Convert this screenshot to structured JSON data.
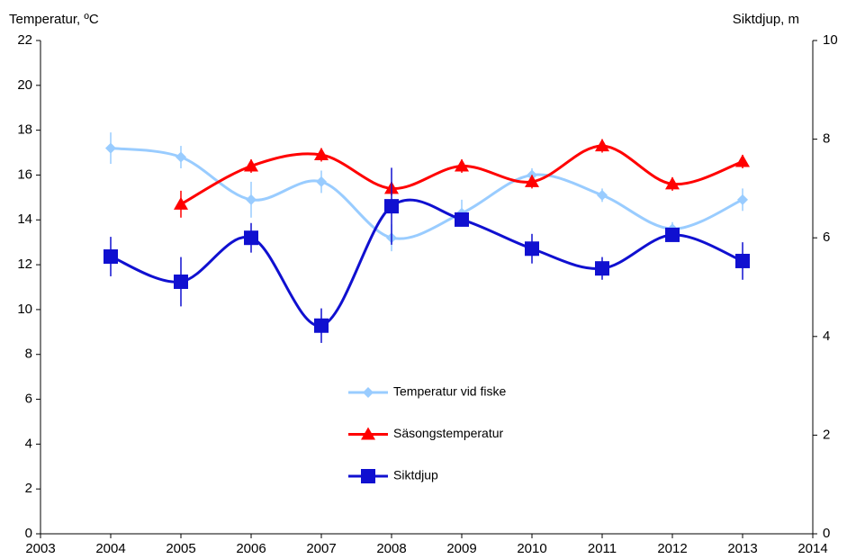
{
  "chart_data": {
    "type": "line",
    "y_label": "Temperatur, ºC",
    "y2_label": "Siktdjup, m",
    "x": [
      2004,
      2005,
      2006,
      2007,
      2008,
      2009,
      2010,
      2011,
      2012,
      2013
    ],
    "xlim": [
      2003,
      2014
    ],
    "xticks": [
      2003,
      2004,
      2005,
      2006,
      2007,
      2008,
      2009,
      2010,
      2011,
      2012,
      2013,
      2014
    ],
    "ylim": [
      0,
      22
    ],
    "yticks": [
      0,
      2,
      4,
      6,
      8,
      10,
      12,
      14,
      16,
      18,
      20,
      22
    ],
    "y2lim": [
      0,
      10
    ],
    "y2ticks": [
      0,
      2,
      4,
      6,
      8,
      10
    ],
    "grid": false,
    "smooth": true,
    "legend": "center",
    "series": [
      {
        "name": "Temperatur vid fiske",
        "color": "#99ccff",
        "marker": "diamond",
        "values": [
          17.2,
          16.8,
          14.9,
          15.7,
          13.2,
          14.3,
          16.0,
          15.1,
          13.6,
          14.9
        ],
        "errors": [
          0.7,
          0.5,
          0.8,
          0.5,
          0.6,
          0.6,
          0.3,
          0.3,
          0.3,
          0.5
        ]
      },
      {
        "name": "Säsongstemperatur",
        "color": "#ff0000",
        "marker": "triangle",
        "values": [
          null,
          14.7,
          16.4,
          16.9,
          15.4,
          16.4,
          15.7,
          17.3,
          15.6,
          16.6
        ],
        "errors": [
          null,
          0.6,
          0.3,
          0.3,
          0.3,
          0.3,
          0.3,
          0.3,
          0.3,
          0.3
        ]
      },
      {
        "name": "Siktdjup",
        "color": "#1010d0",
        "marker": "square",
        "axis": "y2",
        "values": [
          5.62,
          5.11,
          6.0,
          4.22,
          6.64,
          6.37,
          5.78,
          5.38,
          6.06,
          5.53
        ],
        "errors": [
          0.4,
          0.5,
          0.3,
          0.35,
          0.78,
          0.1,
          0.3,
          0.23,
          0.1,
          0.38
        ]
      }
    ]
  }
}
